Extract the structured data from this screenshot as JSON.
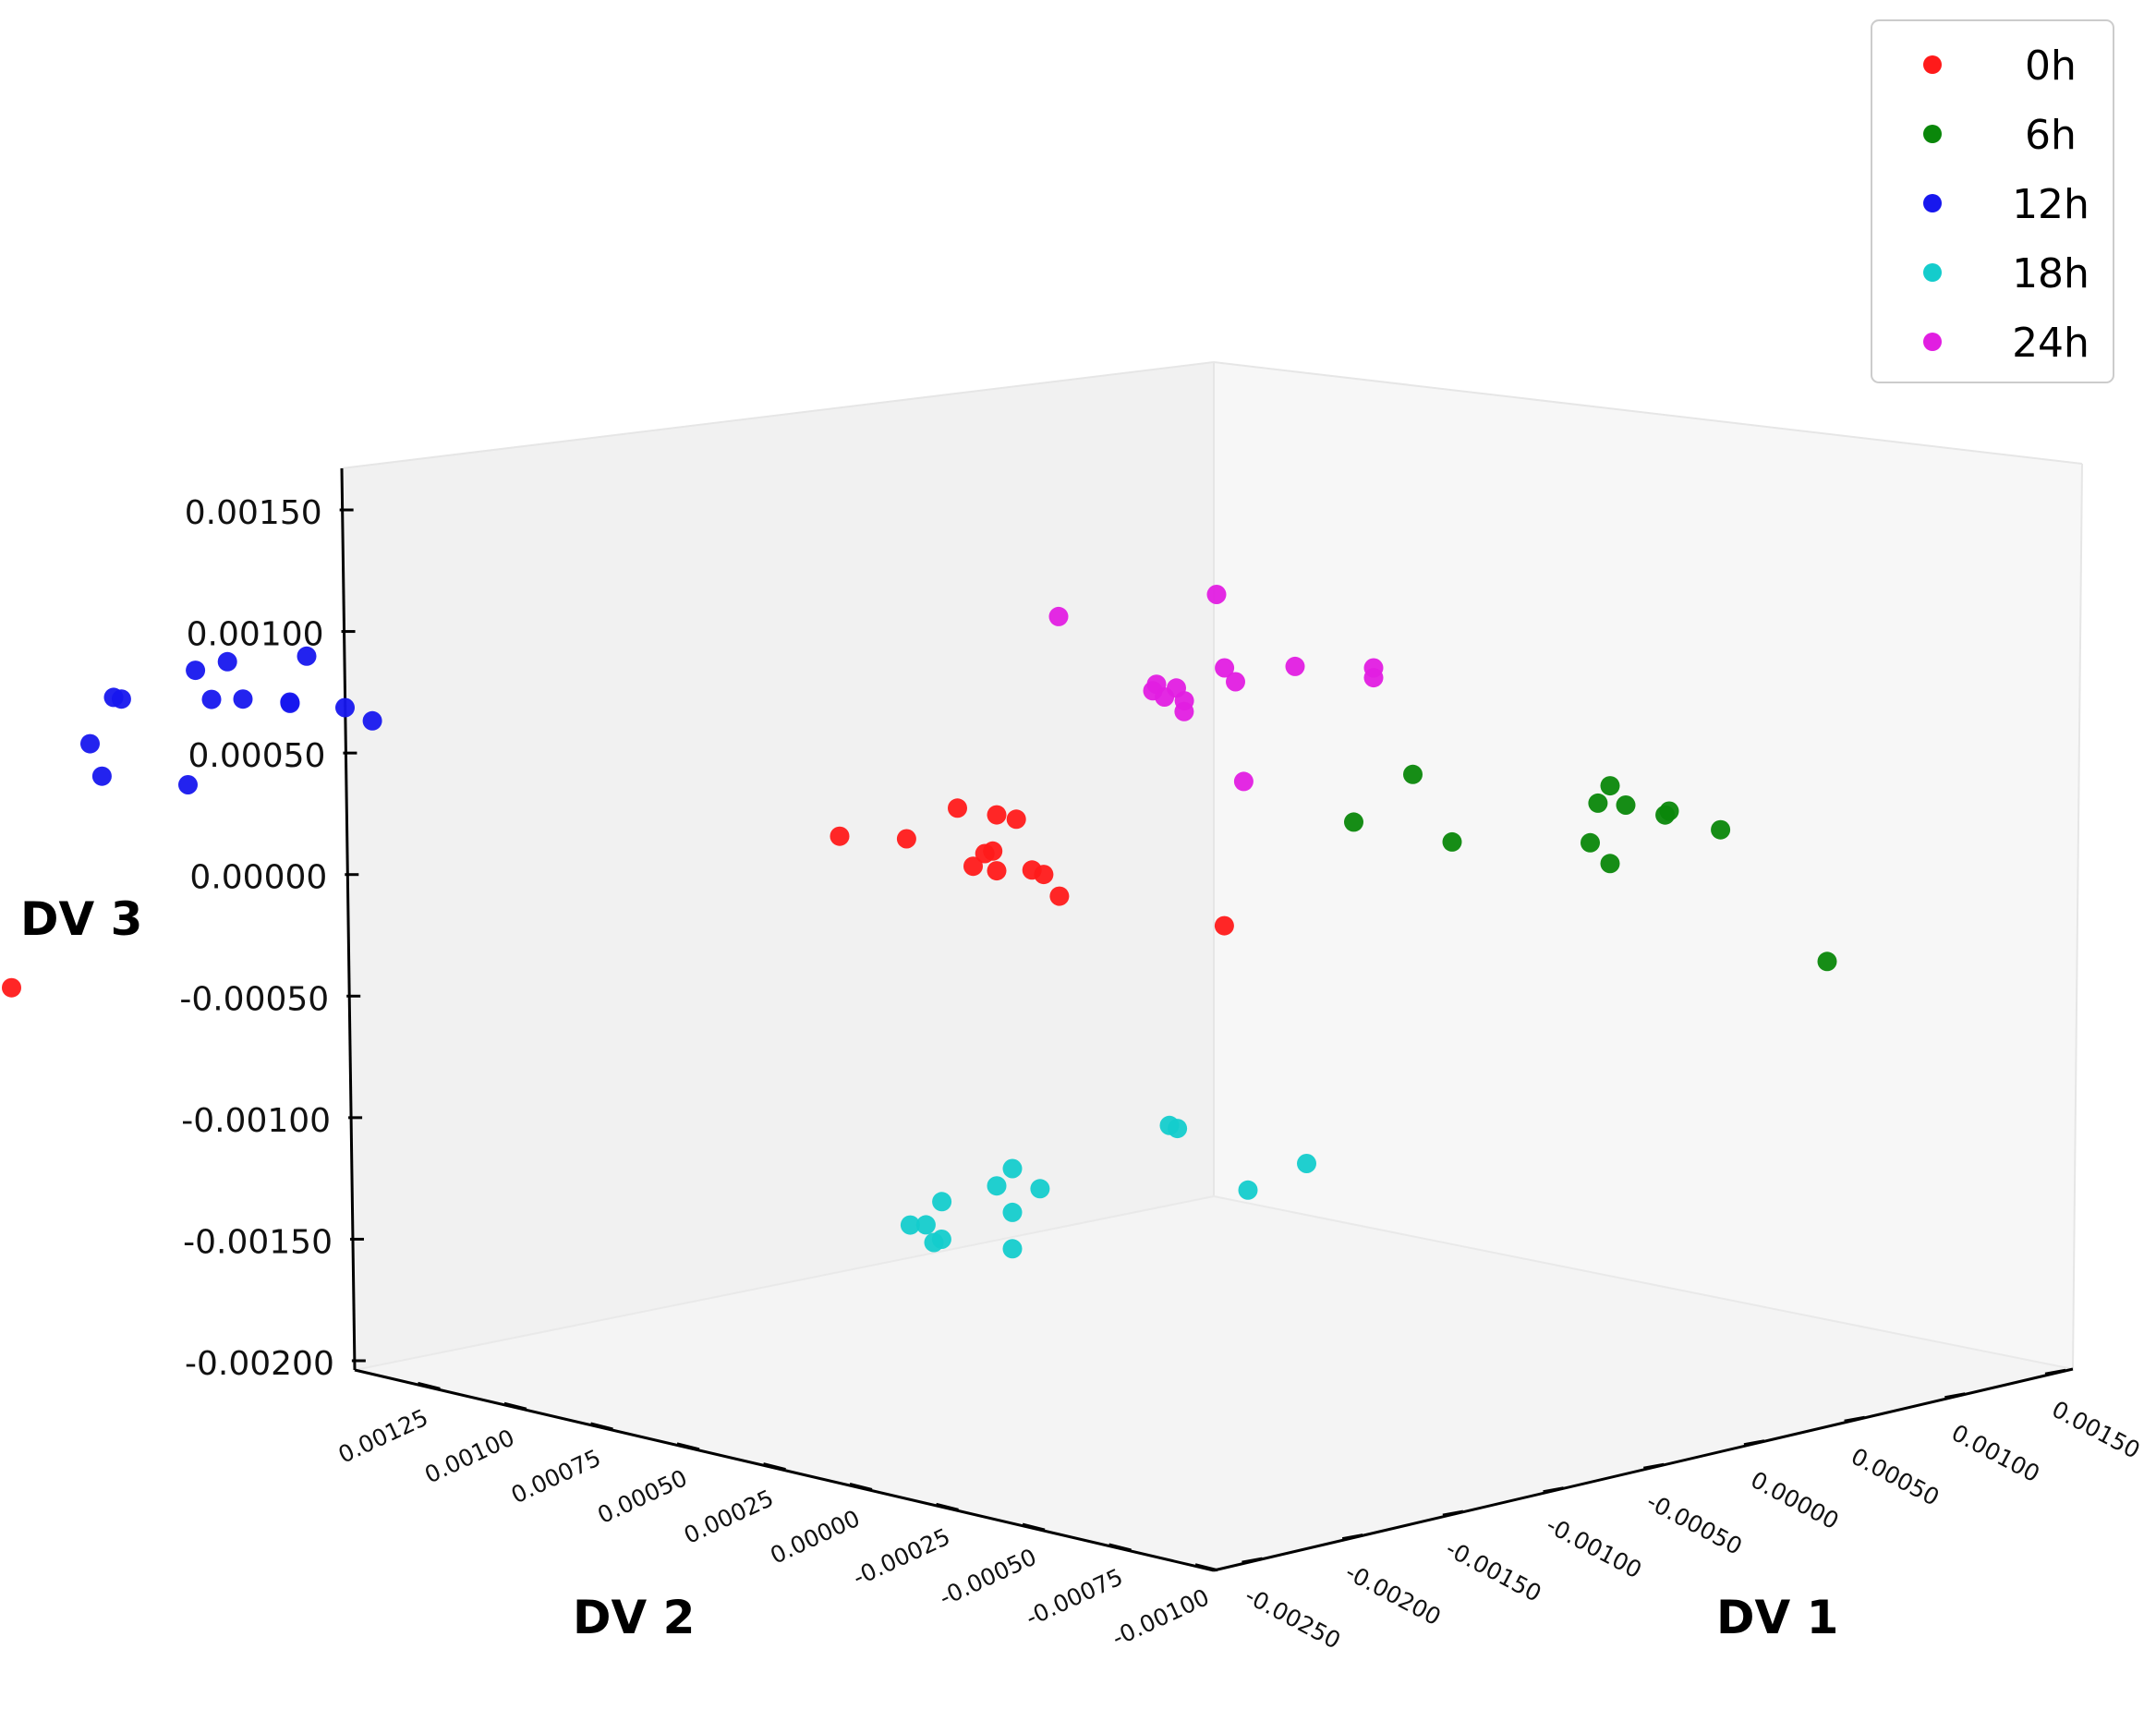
{
  "chart_data": {
    "type": "scatter",
    "projection": "3d",
    "xlabel": "DV 1",
    "ylabel": "DV 2",
    "zlabel": "DV 3",
    "x_ticks": [
      "-0.00250",
      "-0.00200",
      "-0.00150",
      "-0.00100",
      "-0.00050",
      "0.00000",
      "0.00050",
      "0.00100",
      "0.00150"
    ],
    "y_ticks": [
      "-0.00100",
      "-0.00075",
      "-0.00050",
      "-0.00025",
      "0.00000",
      "0.00025",
      "0.00050",
      "0.00075",
      "0.00100",
      "0.00125"
    ],
    "z_ticks": [
      "-0.00200",
      "-0.00150",
      "-0.00100",
      "-0.00050",
      "0.00000",
      "0.00050",
      "0.00100",
      "0.00150"
    ],
    "xlim": [
      -0.0026,
      0.0017
    ],
    "ylim": [
      -0.00105,
      0.00135
    ],
    "zlim": [
      -0.0021,
      0.0016
    ],
    "legend_position": "top-right",
    "series": [
      {
        "name": "0h",
        "color": "#ff1a1a",
        "points": [
          [
            -0.00045,
            0.0002,
            0.00025
          ],
          [
            -0.0004,
            0.00015,
            0.00022
          ],
          [
            -0.00038,
            0.00012,
            0.0002
          ],
          [
            -0.0005,
            0.00028,
            0.00013
          ],
          [
            -0.0006,
            0.00035,
            0.00014
          ],
          [
            -0.00041,
            0.00015,
            7e-05
          ],
          [
            -0.00042,
            0.00016,
            6e-05
          ],
          [
            -0.00043,
            0.00018,
            1e-05
          ],
          [
            -0.0004,
            0.00015,
            -1e-05
          ],
          [
            -0.00036,
            0.0001,
            -1e-05
          ],
          [
            -0.00035,
            8e-05,
            -3e-05
          ],
          [
            -0.00033,
            6e-05,
            -0.00012
          ],
          [
            -0.00012,
            -0.00015,
            -0.00025
          ],
          [
            -0.00205,
            0.001,
            -0.00055
          ]
        ]
      },
      {
        "name": "6h",
        "color": "#0a870a",
        "points": [
          [
            0.00055,
            5e-05,
            0.00048
          ],
          [
            0.0009,
            -0.0001,
            0.00045
          ],
          [
            0.00085,
            -0.00012,
            0.00037
          ],
          [
            0.00092,
            -0.00012,
            0.00037
          ],
          [
            0.001,
            -0.00015,
            0.00035
          ],
          [
            0.00098,
            -0.00016,
            0.00033
          ],
          [
            0.0011,
            -0.00018,
            0.00028
          ],
          [
            0.00045,
            0.0001,
            0.00028
          ],
          [
            0.0006,
            0.0,
            0.0002
          ],
          [
            0.00085,
            -0.0001,
            0.00021
          ],
          [
            0.0009,
            -0.0001,
            0.00013
          ],
          [
            0.0013,
            -0.00025,
            -0.00025
          ]
        ]
      },
      {
        "name": "12h",
        "color": "#1717ee",
        "points": [
          [
            -0.0016,
            0.0007,
            0.00082
          ],
          [
            -0.00178,
            0.00072,
            0.00078
          ],
          [
            -0.00188,
            0.0007,
            0.00073
          ],
          [
            -0.00192,
            0.00085,
            0.00063
          ],
          [
            -0.00192,
            0.00087,
            0.00064
          ],
          [
            -0.00182,
            0.00072,
            0.00062
          ],
          [
            -0.00178,
            0.00068,
            0.00062
          ],
          [
            -0.00172,
            0.00062,
            0.0006
          ],
          [
            -0.00174,
            0.0006,
            0.0006
          ],
          [
            -0.00165,
            0.00055,
            0.00058
          ],
          [
            -0.00163,
            0.0005,
            0.00052
          ],
          [
            -0.00195,
            0.0009,
            0.00045
          ],
          [
            -0.00192,
            0.0009,
            0.00032
          ],
          [
            -0.00185,
            0.00075,
            0.00027
          ]
        ]
      },
      {
        "name": "18h",
        "color": "#14cccc",
        "points": [
          [
            -0.0006,
            -0.0005,
            -0.00118
          ],
          [
            -0.00058,
            -0.0005,
            -0.00119
          ],
          [
            -0.00045,
            -0.0007,
            -0.00135
          ],
          [
            -0.0008,
            -0.0003,
            -0.00135
          ],
          [
            -0.00075,
            -0.00032,
            -0.00143
          ],
          [
            -0.00082,
            -0.00028,
            -0.00142
          ],
          [
            -0.0005,
            -0.0006,
            -0.00145
          ],
          [
            -0.00088,
            -0.0002,
            -0.00148
          ],
          [
            -0.0008,
            -0.0003,
            -0.00153
          ],
          [
            -0.00094,
            -0.00018,
            -0.00158
          ],
          [
            -0.00092,
            -0.0002,
            -0.00158
          ],
          [
            -0.0009,
            -0.00022,
            -0.00164
          ],
          [
            -0.0009,
            -0.0002,
            -0.00165
          ],
          [
            -0.0008,
            -0.0003,
            -0.00168
          ]
        ]
      },
      {
        "name": "24h",
        "color": "#e11ee1",
        "points": [
          [
            0.0003,
            0.0003,
            0.00123
          ],
          [
            0.00032,
            0.0003,
            0.00093
          ],
          [
            0.0005,
            0.0001,
            0.00088
          ],
          [
            0.0005,
            0.0001,
            0.00092
          ],
          [
            0.0004,
            0.0002,
            0.00093
          ],
          [
            0.00015,
            0.00025,
            0.00082
          ],
          [
            0.00012,
            0.00025,
            0.00078
          ],
          [
            0.0001,
            0.00025,
            0.00083
          ],
          [
            0.00012,
            0.00028,
            0.00081
          ],
          [
            0.00025,
            0.0002,
            0.00085
          ],
          [
            0.00017,
            0.00025,
            0.00077
          ],
          [
            0.00015,
            0.00023,
            0.00072
          ],
          [
            0.0,
            0.0004,
            0.00112
          ],
          [
            0.0003,
            0.00023,
            0.00045
          ]
        ]
      }
    ]
  }
}
